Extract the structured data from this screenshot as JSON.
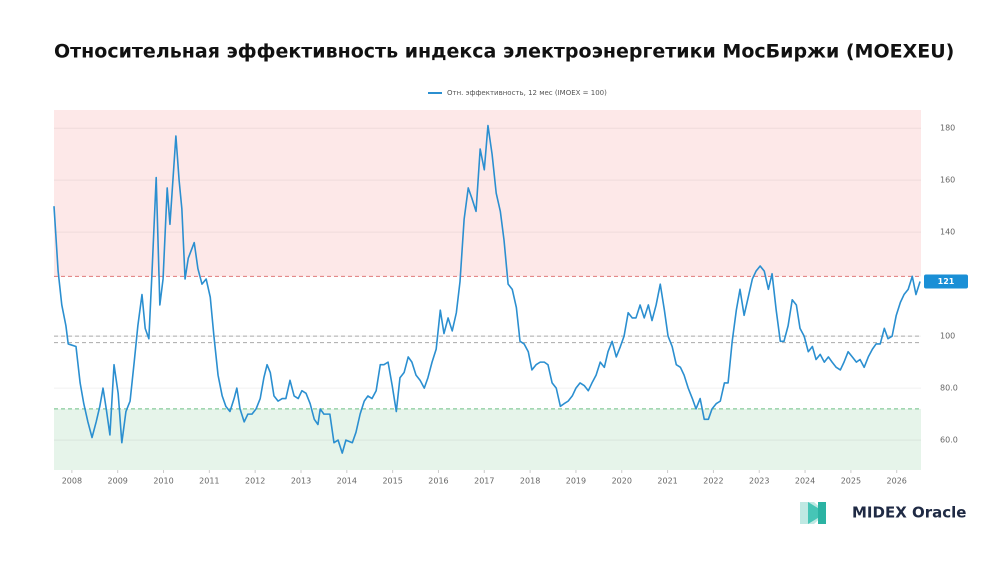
{
  "chart_data": {
    "type": "line",
    "title": "Относительная эффективность индекса электроэнергетики МосБиржи (MOEXEU)",
    "brand": "MIDEX Oracle",
    "current_value": 121,
    "xlim": [
      2007.61,
      2026.53
    ],
    "xticks": [
      2008,
      2009,
      2010,
      2011,
      2012,
      2013,
      2014,
      2015,
      2016,
      2017,
      2018,
      2019,
      2020,
      2021,
      2022,
      2023,
      2024,
      2025,
      2026
    ],
    "ylim": [
      48.5,
      187
    ],
    "yticks": [
      {
        "value": 60,
        "label": "60.0"
      },
      {
        "value": 80,
        "label": "80.0"
      },
      100,
      140,
      160,
      180
    ],
    "grid": true,
    "zones": [
      {
        "from": 123,
        "color": "#fde8e8"
      },
      {
        "to": 72,
        "color": "#e6f4ea"
      }
    ],
    "reference_lines": [
      {
        "value": 123,
        "color": "#e07a7a"
      },
      {
        "value": 100,
        "color": "#aaaaaa"
      },
      {
        "value": 97.5,
        "color": "#aaaaaa"
      },
      {
        "value": 72,
        "color": "#6cbf84"
      }
    ],
    "series": [
      {
        "name": "Отн. эффективность, 12 мес (IMOEX = 100)",
        "color": "#2b8fd0",
        "x": [
          2007.61,
          2007.7,
          2007.78,
          2007.87,
          2007.92,
          2008.09,
          2008.18,
          2008.26,
          2008.35,
          2008.44,
          2008.53,
          2008.61,
          2008.68,
          2008.75,
          2008.83,
          2008.92,
          2009.01,
          2009.09,
          2009.18,
          2009.27,
          2009.36,
          2009.44,
          2009.53,
          2009.6,
          2009.68,
          2009.75,
          2009.84,
          2009.92,
          2009.99,
          2010.08,
          2010.14,
          2010.27,
          2010.34,
          2010.4,
          2010.47,
          2010.54,
          2010.67,
          2010.75,
          2010.84,
          2010.93,
          2011.02,
          2011.1,
          2011.19,
          2011.28,
          2011.36,
          2011.45,
          2011.54,
          2011.6,
          2011.67,
          2011.76,
          2011.84,
          2011.93,
          2012.02,
          2012.11,
          2012.19,
          2012.26,
          2012.33,
          2012.41,
          2012.5,
          2012.59,
          2012.67,
          2012.76,
          2012.85,
          2012.94,
          2013.02,
          2013.11,
          2013.2,
          2013.29,
          2013.37,
          2013.42,
          2013.5,
          2013.63,
          2013.72,
          2013.81,
          2013.9,
          2013.98,
          2014.12,
          2014.2,
          2014.29,
          2014.38,
          2014.46,
          2014.55,
          2014.64,
          2014.73,
          2014.81,
          2014.9,
          2014.99,
          2015.08,
          2015.16,
          2015.25,
          2015.34,
          2015.42,
          2015.51,
          2015.6,
          2015.69,
          2015.77,
          2015.86,
          2015.95,
          2016.04,
          2016.12,
          2016.21,
          2016.3,
          2016.39,
          2016.47,
          2016.56,
          2016.65,
          2016.73,
          2016.82,
          2016.91,
          2017.0,
          2017.08,
          2017.17,
          2017.26,
          2017.35,
          2017.43,
          2017.52,
          2017.61,
          2017.7,
          2017.78,
          2017.87,
          2017.96,
          2018.04,
          2018.13,
          2018.22,
          2018.31,
          2018.39,
          2018.48,
          2018.57,
          2018.66,
          2018.74,
          2018.83,
          2018.92,
          2019.0,
          2019.09,
          2019.18,
          2019.27,
          2019.35,
          2019.44,
          2019.53,
          2019.62,
          2019.7,
          2019.79,
          2019.88,
          2019.97,
          2020.05,
          2020.14,
          2020.23,
          2020.31,
          2020.4,
          2020.49,
          2020.58,
          2020.66,
          2020.75,
          2020.84,
          2020.93,
          2021.01,
          2021.1,
          2021.19,
          2021.28,
          2021.36,
          2021.45,
          2021.54,
          2021.62,
          2021.71,
          2021.8,
          2021.89,
          2021.97,
          2022.06,
          2022.15,
          2022.24,
          2022.32,
          2022.41,
          2022.5,
          2022.58,
          2022.67,
          2022.76,
          2022.85,
          2022.93,
          2023.02,
          2023.11,
          2023.2,
          2023.28,
          2023.37,
          2023.46,
          2023.54,
          2023.63,
          2023.72,
          2023.81,
          2023.89,
          2023.98,
          2024.07,
          2024.16,
          2024.24,
          2024.33,
          2024.42,
          2024.51,
          2024.59,
          2024.68,
          2024.77,
          2024.85,
          2024.94,
          2025.03,
          2025.12,
          2025.2,
          2025.29,
          2025.38,
          2025.47,
          2025.55,
          2025.64,
          2025.73,
          2025.81,
          2025.9,
          2025.99,
          2026.08,
          2026.16,
          2026.25,
          2026.34,
          2026.42,
          2026.51
        ],
        "values": [
          150,
          125,
          112,
          104,
          97,
          96,
          82,
          74,
          67,
          61,
          67,
          73,
          80,
          72,
          62,
          89,
          78,
          59,
          71,
          75,
          90,
          104,
          116,
          103,
          99,
          125,
          161,
          112,
          122,
          157,
          143,
          177,
          160,
          149,
          122,
          130,
          136,
          126,
          120,
          122,
          115,
          100,
          85,
          77,
          73,
          71,
          76,
          80,
          72,
          67,
          70,
          70,
          72,
          76,
          84,
          89,
          86,
          77,
          75,
          76,
          76,
          83,
          77,
          76,
          79,
          78,
          74,
          68,
          66,
          72,
          70,
          70,
          59,
          60,
          55,
          60,
          59,
          63,
          70,
          75,
          77,
          76,
          79,
          89,
          89,
          90,
          81,
          71,
          84,
          86,
          92,
          90,
          85,
          83,
          80,
          84,
          90,
          95,
          110,
          101,
          107,
          102,
          109,
          121,
          145,
          157,
          153,
          148,
          172,
          164,
          181,
          170,
          155,
          148,
          137,
          120,
          118,
          111,
          98,
          97,
          94,
          87,
          89,
          90,
          90,
          89,
          82,
          80,
          73,
          74,
          75,
          77,
          80,
          82,
          81,
          79,
          82,
          85,
          90,
          88,
          94,
          98,
          92,
          96,
          100,
          109,
          107,
          107,
          112,
          107,
          112,
          106,
          112,
          120,
          110,
          100,
          96,
          89,
          88,
          85,
          80,
          76,
          72,
          76,
          68,
          68,
          72,
          74,
          75,
          82,
          82,
          98,
          110,
          118,
          108,
          115,
          122,
          125,
          127,
          125,
          118,
          124,
          110,
          98,
          98,
          104,
          114,
          112,
          103,
          100,
          94,
          96,
          91,
          93,
          90,
          92,
          90,
          88,
          87,
          90,
          94,
          92,
          90,
          91,
          88,
          92,
          95,
          97,
          97,
          103,
          99,
          100,
          108,
          113,
          116,
          118,
          123,
          116,
          121
        ]
      }
    ]
  }
}
